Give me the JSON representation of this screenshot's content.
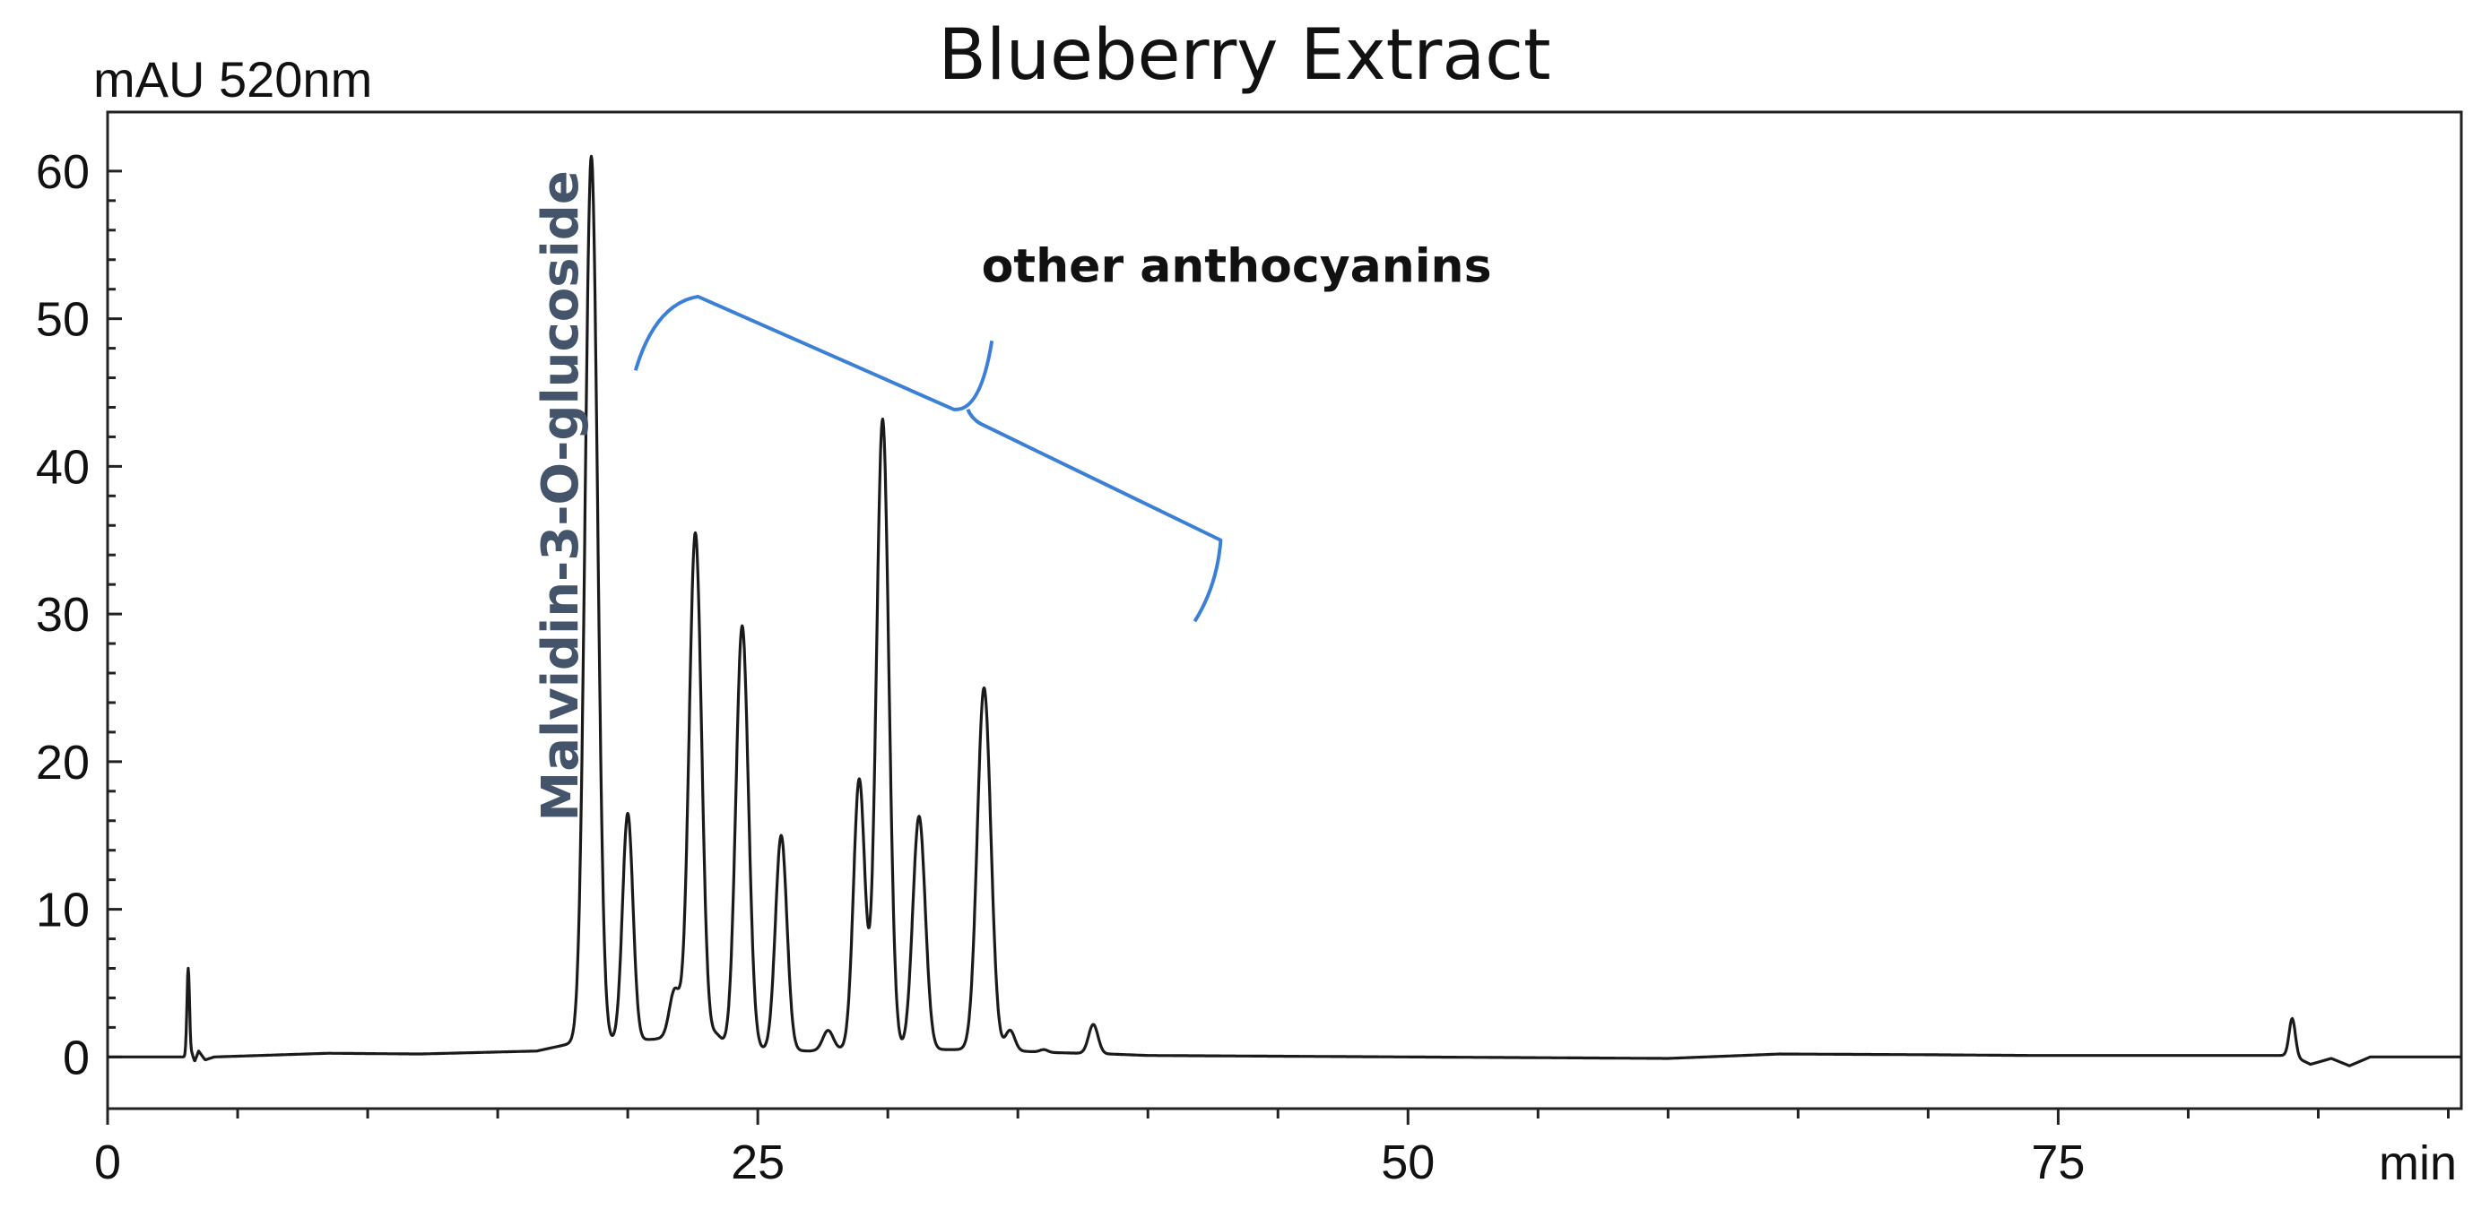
{
  "chart_data": {
    "type": "line",
    "title": "Blueberry Extract",
    "ylabel": "mAU 520nm",
    "xlabel": "min",
    "xlim": [
      0,
      90.5
    ],
    "ylim": [
      -3.5,
      64
    ],
    "x_ticks": [
      0,
      25,
      50,
      75
    ],
    "y_ticks": [
      0,
      10,
      20,
      30,
      40,
      50,
      60
    ],
    "grid": false,
    "colors": {
      "trace": "#1a1a1a",
      "bracket": "#3b7fd6",
      "peak_label": "#44546a"
    },
    "baseline": [
      [
        0,
        0
      ],
      [
        3.0,
        0
      ],
      [
        3.25,
        0.2
      ],
      [
        3.35,
        -0.3
      ],
      [
        3.5,
        0.4
      ],
      [
        3.75,
        -0.2
      ],
      [
        4.1,
        0
      ],
      [
        8.5,
        0.25
      ],
      [
        12,
        0.2
      ],
      [
        16.5,
        0.4
      ],
      [
        17.8,
        0.9
      ],
      [
        21.0,
        1.2
      ],
      [
        22.0,
        1.4
      ],
      [
        23.0,
        0.8
      ],
      [
        25.0,
        0.5
      ],
      [
        27.0,
        0.4
      ],
      [
        29.0,
        0.6
      ],
      [
        30.5,
        0.5
      ],
      [
        33.0,
        0.5
      ],
      [
        35.0,
        0.4
      ],
      [
        36.3,
        0.3
      ],
      [
        38.5,
        0.2
      ],
      [
        40,
        0.1
      ],
      [
        50,
        0
      ],
      [
        60,
        -0.1
      ],
      [
        64.3,
        0.2
      ],
      [
        70,
        0.15
      ],
      [
        74,
        0.1
      ],
      [
        84.0,
        0.1
      ],
      [
        84.7,
        -0.5
      ],
      [
        85.5,
        -0.1
      ],
      [
        86.2,
        -0.6
      ],
      [
        87.0,
        0
      ],
      [
        90.5,
        0
      ]
    ],
    "peaks": [
      {
        "x": 3.1,
        "y": 6.0,
        "w": 0.05
      },
      {
        "x": 18.6,
        "y": 61.0,
        "w": 0.24
      },
      {
        "x": 20.0,
        "y": 16.5,
        "w": 0.2
      },
      {
        "x": 21.8,
        "y": 4.5,
        "w": 0.2
      },
      {
        "x": 22.6,
        "y": 35.5,
        "w": 0.24
      },
      {
        "x": 23.4,
        "y": 1.5,
        "w": 0.2
      },
      {
        "x": 24.4,
        "y": 29.2,
        "w": 0.24
      },
      {
        "x": 25.9,
        "y": 15.0,
        "w": 0.22
      },
      {
        "x": 27.7,
        "y": 1.8,
        "w": 0.2
      },
      {
        "x": 28.9,
        "y": 18.8,
        "w": 0.22
      },
      {
        "x": 29.8,
        "y": 43.2,
        "w": 0.24
      },
      {
        "x": 31.2,
        "y": 16.3,
        "w": 0.24
      },
      {
        "x": 33.7,
        "y": 25.0,
        "w": 0.26
      },
      {
        "x": 34.7,
        "y": 1.8,
        "w": 0.18
      },
      {
        "x": 36.0,
        "y": 0.5,
        "w": 0.15
      },
      {
        "x": 37.9,
        "y": 2.2,
        "w": 0.18
      },
      {
        "x": 84.0,
        "y": 2.6,
        "w": 0.12
      }
    ],
    "annotations": [
      {
        "text": "Malvidin-3-O-glucoside",
        "x": 17.3,
        "y": 38
      },
      {
        "text": "other anthocyanins",
        "x": 33.6,
        "y": 52.5,
        "bracket_from": 20.3,
        "bracket_to": 41.8
      }
    ]
  }
}
